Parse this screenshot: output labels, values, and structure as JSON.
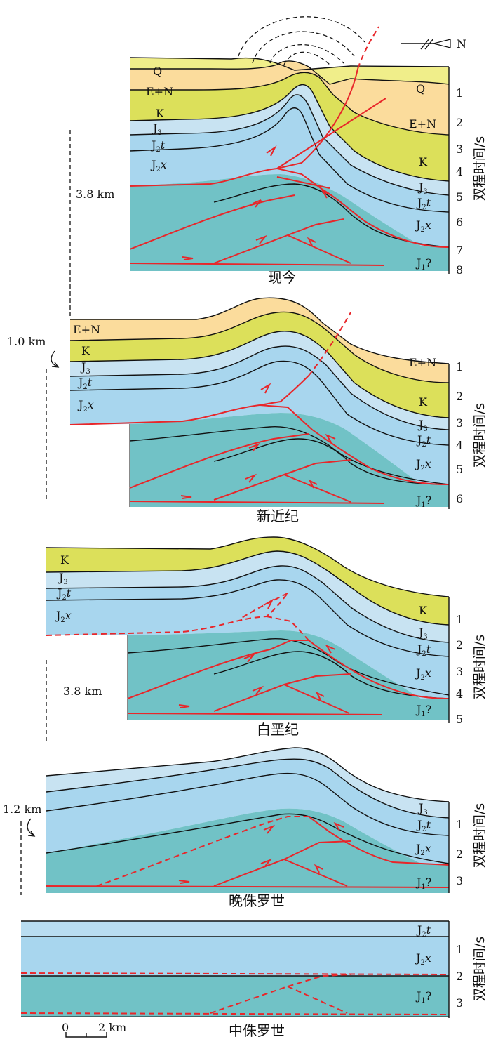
{
  "north_label": "N",
  "axis_title": "双程时间/s",
  "scale_bar": {
    "start": "0",
    "end": "2 km"
  },
  "panels": [
    {
      "caption": "现今",
      "layers": [
        "Q",
        "E+N",
        "K",
        "J3",
        "J2t",
        "J2x"
      ],
      "right_layers": [
        "Q",
        "E+N",
        "K",
        "J3",
        "J2t",
        "J2x",
        "J1?"
      ],
      "ticks": [
        "1",
        "2",
        "3",
        "4",
        "5",
        "6",
        "7",
        "8"
      ],
      "thickness_label": "3.8 km"
    },
    {
      "caption": "新近纪",
      "layers": [
        "E+N",
        "K",
        "J3",
        "J2t",
        "J2x"
      ],
      "right_layers": [
        "E+N",
        "K",
        "J3",
        "J2t",
        "J2x",
        "J1?"
      ],
      "ticks": [
        "1",
        "2",
        "3",
        "4",
        "5",
        "6"
      ],
      "thickness_label": "1.0 km"
    },
    {
      "caption": "白垩纪",
      "layers": [
        "K",
        "J3",
        "J2t",
        "J2x"
      ],
      "right_layers": [
        "K",
        "J3",
        "J2t",
        "J2x",
        "J1?"
      ],
      "ticks": [
        "1",
        "2",
        "3",
        "4",
        "5"
      ],
      "thickness_label": "3.8 km"
    },
    {
      "caption": "晚侏罗世",
      "layers": [],
      "right_layers": [
        "J3",
        "J2t",
        "J2x",
        "J1?"
      ],
      "ticks": [
        "1",
        "2",
        "3"
      ],
      "thickness_label": "1.2 km"
    },
    {
      "caption": "中侏罗世",
      "layers": [],
      "right_layers": [
        "J2t",
        "J2x",
        "J1?"
      ],
      "ticks": [
        "1",
        "2",
        "3"
      ],
      "thickness_label": ""
    }
  ],
  "colors": {
    "Q": "#f0ee8a",
    "E+N": "#fbdc9c",
    "K": "#dce05a",
    "J3": "#c8e3f2",
    "J2t": "#b9ddf1",
    "J2x": "#a8d6ee",
    "J1": "#71c2c6",
    "fault": "#e8262a"
  }
}
